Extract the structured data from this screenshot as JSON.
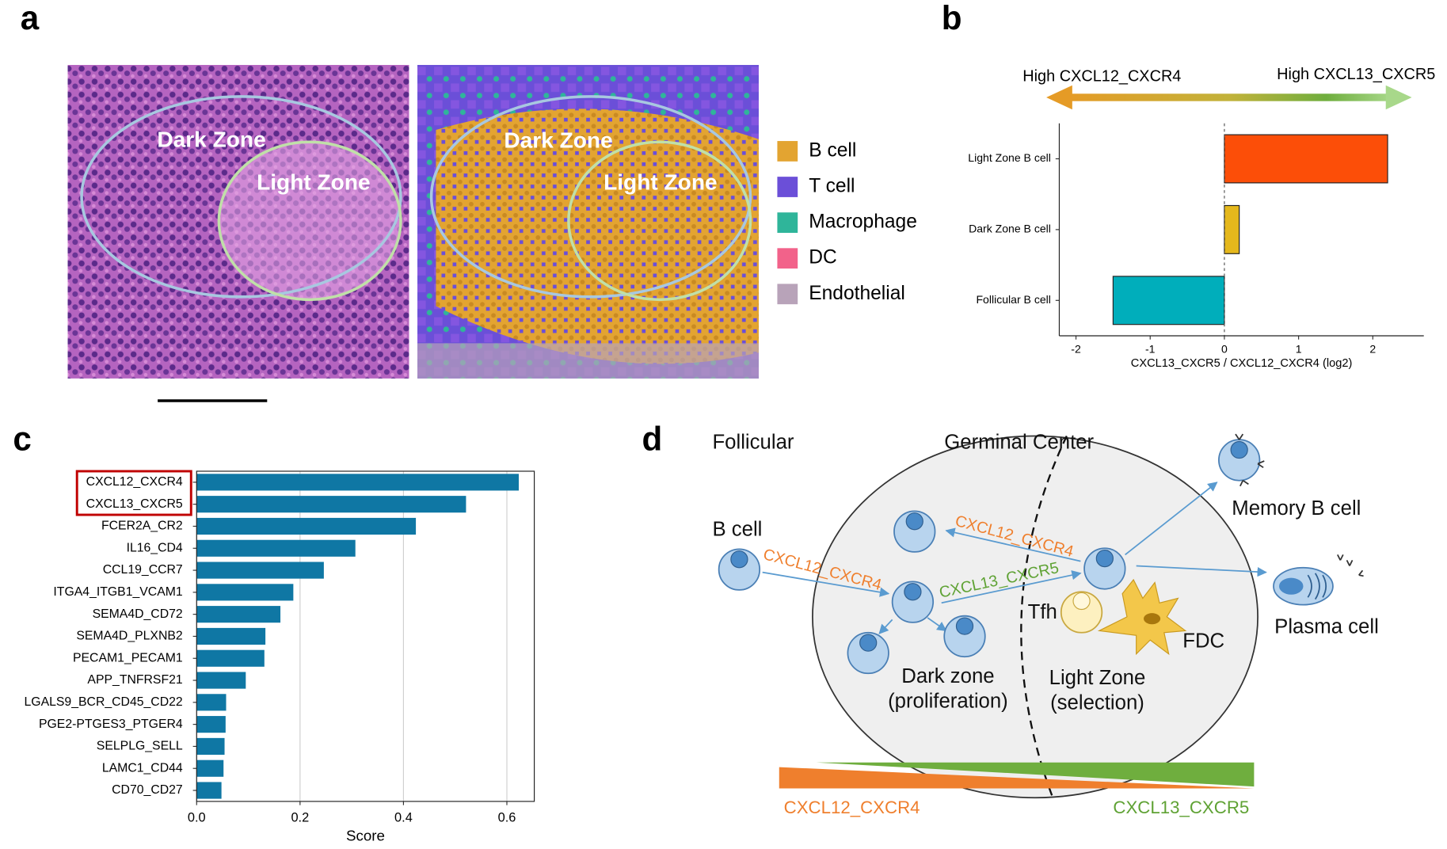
{
  "panel_labels": [
    "a",
    "b",
    "c",
    "d"
  ],
  "panel_a": {
    "left_zones": [
      "Dark Zone",
      "Light Zone"
    ],
    "right_zones": [
      "Dark Zone",
      "Light Zone"
    ],
    "legend": [
      {
        "name": "B cell",
        "color": "#e3a431"
      },
      {
        "name": "T cell",
        "color": "#6b4fd8"
      },
      {
        "name": "Macrophage",
        "color": "#2fb59a"
      },
      {
        "name": "DC",
        "color": "#f2628a"
      },
      {
        "name": "Endothelial",
        "color": "#b8a3b9"
      }
    ]
  },
  "chart_data": [
    {
      "type": "barh",
      "arrow_left": "High CXCL12_CXCR4",
      "arrow_right": "High CXCL13_CXCR5",
      "categories": [
        "Light Zone B cell",
        "Dark Zone B cell",
        "Follicular B cell"
      ],
      "values": [
        2.2,
        0.2,
        -1.5
      ],
      "colors": [
        "#fc4e08",
        "#e5b81c",
        "#00aebb"
      ],
      "xlabel": "CXCL13_CXCR5 / CXCL12_CXCR4 (log2)",
      "xlim": [
        -2.225,
        2.6875
      ],
      "xticks": [
        -2,
        -1,
        0,
        1,
        2
      ],
      "grid": false
    },
    {
      "type": "barh",
      "categories": [
        "CXCL12_CXCR4",
        "CXCL13_CXCR5",
        "FCER2A_CR2",
        "IL16_CD4",
        "CCL19_CCR7",
        "ITGA4_ITGB1_VCAM1",
        "SEMA4D_CD72",
        "SEMA4D_PLXNB2",
        "PECAM1_PECAM1",
        "APP_TNFRSF21",
        "LGALS9_BCR_CD45_CD22",
        "PGE2-PTGES3_PTGER4",
        "SELPLG_SELL",
        "LAMC1_CD44",
        "CD70_CD27"
      ],
      "values": [
        0.623,
        0.521,
        0.424,
        0.307,
        0.246,
        0.187,
        0.162,
        0.133,
        0.131,
        0.095,
        0.057,
        0.056,
        0.054,
        0.052,
        0.048
      ],
      "color": "#0f77a4",
      "xlabel": "Score",
      "xlim": [
        0,
        0.653
      ],
      "xticks": [
        {
          "value": 0,
          "label": "0.0"
        },
        0.2,
        0.4,
        0.6
      ],
      "grid": true
    }
  ],
  "diagram": {
    "follicular": "Follicular",
    "germinal_center": "Germinal Center",
    "b_cell": "B cell",
    "signal1": "CXCL12_CXCR4",
    "signal2": "CXCL12_CXCR4",
    "signal3": "CXCL13_CXCR5",
    "tfh": "Tfh",
    "fdc": "FDC",
    "memory": "Memory B cell",
    "plasma": "Plasma cell",
    "dark_zone": "Dark zone",
    "dark_zone_role": "(proliferation)",
    "light_zone": "Light Zone",
    "light_zone_role": "(selection)",
    "gradient_left": "CXCL12_CXCR4",
    "gradient_right": "CXCL13_CXCR5"
  }
}
